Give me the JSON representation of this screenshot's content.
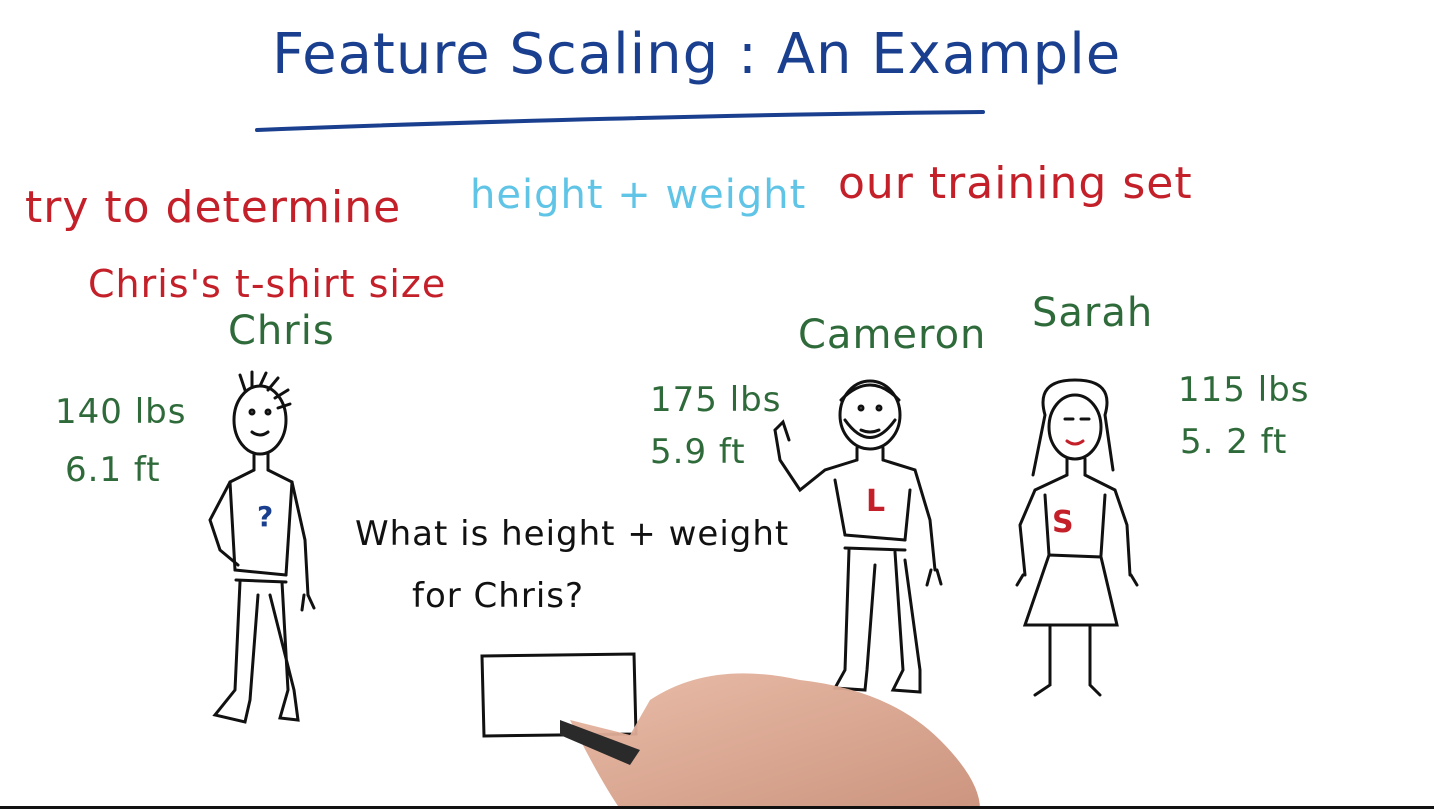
{
  "title": "Feature Scaling : An Example",
  "task": {
    "line1": "try to determine",
    "line2": "Chris's t-shirt size"
  },
  "features": "height + weight",
  "training_label": "our training set",
  "people": {
    "chris": {
      "name": "Chris",
      "weight": "140 lbs",
      "height": "6.1 ft"
    },
    "cameron": {
      "name": "Cameron",
      "weight": "175 lbs",
      "height": "5.9 ft",
      "shirt": "L"
    },
    "sarah": {
      "name": "Sarah",
      "weight": "115 lbs",
      "height": "5. 2 ft",
      "shirt": "S"
    }
  },
  "chris_shirt_mark": "?",
  "question": {
    "line1": "What is height + weight",
    "line2": "for Chris?"
  },
  "colors": {
    "title": "#1a3f8f",
    "task": "#c4202a",
    "features": "#5fc4e6",
    "names": "#2f6b3a",
    "ink": "#111111"
  }
}
